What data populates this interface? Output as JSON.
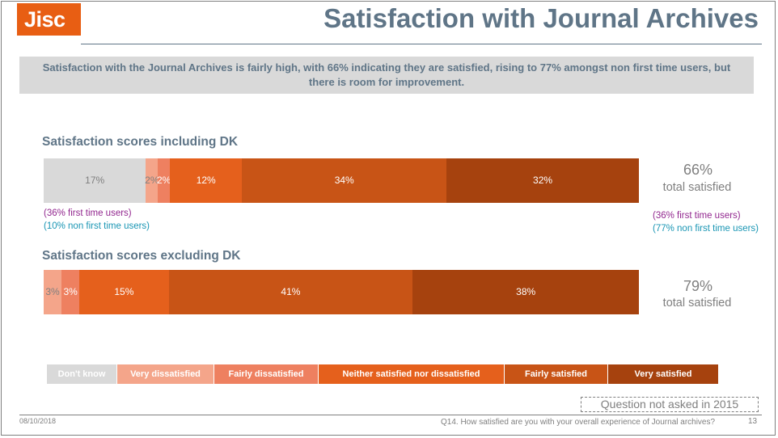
{
  "logo": "Jisc",
  "title": "Satisfaction with Journal Archives",
  "summary": "Satisfaction with the Journal Archives is fairly high, with 66% indicating they are satisfied, rising to 77% amongst non first time users, but there is room for improvement.",
  "colors": {
    "dont_know": "#d9d9d9",
    "very_dissatisfied": "#f4a58a",
    "fairly_dissatisfied": "#ee8060",
    "neither": "#e5601c",
    "fairly_satisfied": "#c85416",
    "very_satisfied": "#a6420e",
    "title": "#5f7587",
    "purple_note": "#92278f",
    "teal_note": "#1a96b4"
  },
  "chart_data": [
    {
      "type": "bar",
      "orientation": "horizontal-stacked-100",
      "title": "Satisfaction scores including DK",
      "categories": [
        "Don't know",
        "Very dissatisfied",
        "Fairly dissatisfied",
        "Neither satisfied nor dissatisfied",
        "Fairly satisfied",
        "Very satisfied"
      ],
      "values": [
        17,
        2,
        2,
        12,
        34,
        32
      ],
      "labels": [
        "17%",
        "2%",
        "2%",
        "12%",
        "34%",
        "32%"
      ],
      "total_satisfied_value": "66%",
      "total_satisfied_label": "total satisfied",
      "left_notes": [
        "(36% first time users)",
        "(10% non first time users)"
      ],
      "right_notes": [
        "(36% first time users)",
        "(77% non first time users)"
      ]
    },
    {
      "type": "bar",
      "orientation": "horizontal-stacked-100",
      "title": "Satisfaction scores excluding DK",
      "categories": [
        "Very dissatisfied",
        "Fairly dissatisfied",
        "Neither satisfied nor dissatisfied",
        "Fairly satisfied",
        "Very satisfied"
      ],
      "values": [
        3,
        3,
        15,
        41,
        38
      ],
      "labels": [
        "3%",
        "3%",
        "15%",
        "41%",
        "38%"
      ],
      "total_satisfied_value": "79%",
      "total_satisfied_label": "total satisfied"
    }
  ],
  "legend": [
    {
      "label": "Don't know",
      "key": "dont_know"
    },
    {
      "label": "Very dissatisfied",
      "key": "very_dissatisfied"
    },
    {
      "label": "Fairly dissatisfied",
      "key": "fairly_dissatisfied"
    },
    {
      "label": "Neither satisfied nor dissatisfied",
      "key": "neither"
    },
    {
      "label": "Fairly satisfied",
      "key": "fairly_satisfied"
    },
    {
      "label": "Very satisfied",
      "key": "very_satisfied"
    }
  ],
  "question_note": "Question not asked in 2015",
  "footer": {
    "date": "08/10/2018",
    "question": "Q14. How satisfied are you with your overall experience of Journal archives?",
    "page": "13"
  }
}
